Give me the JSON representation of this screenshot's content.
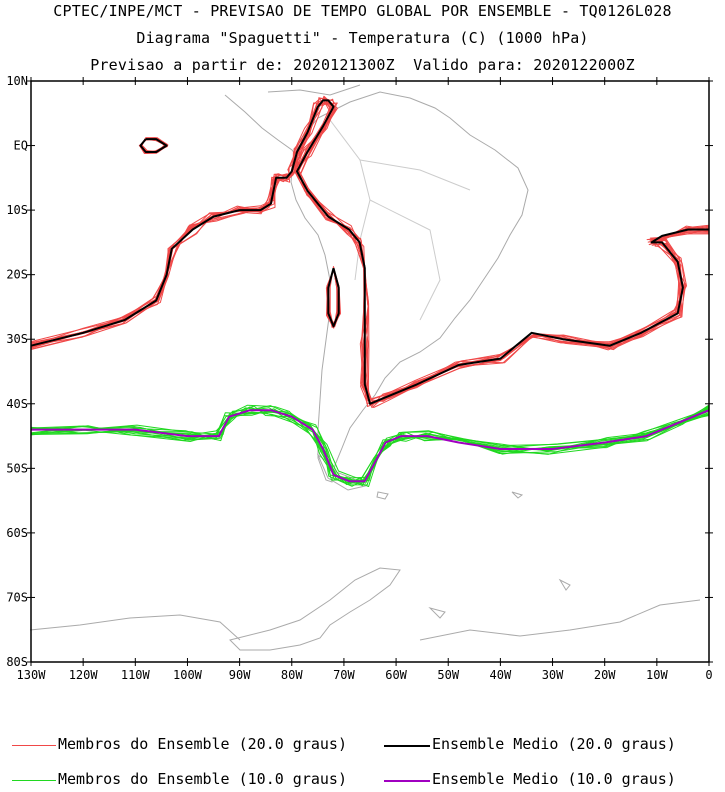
{
  "titles": {
    "line1": "CPTEC/INPE/MCT - PREVISAO DE TEMPO GLOBAL POR ENSEMBLE - TQ0126L028",
    "line2": "Diagrama \"Spaguetti\" - Temperatura (C) (1000 hPa)",
    "line3": "Previsao a partir de: 2020121300Z  Valido para: 2020122000Z"
  },
  "axes": {
    "lat_labels": [
      "10N",
      "EQ",
      "10S",
      "20S",
      "30S",
      "40S",
      "50S",
      "60S",
      "70S",
      "80S"
    ],
    "lon_labels": [
      "130W",
      "120W",
      "110W",
      "100W",
      "90W",
      "80W",
      "70W",
      "60W",
      "50W",
      "40W",
      "30W",
      "20W",
      "10W",
      "0"
    ],
    "lat_range": [
      10,
      -80
    ],
    "lon_range": [
      -130,
      0
    ]
  },
  "colors": {
    "member20": "#f04848",
    "mean20": "#000000",
    "member10": "#20d820",
    "mean10": "#a000c0",
    "coast": "#aaaaaa"
  },
  "legend": {
    "member20": "Membros do Ensemble (20.0 graus)",
    "mean20": "Ensemble Medio (20.0 graus)",
    "member10": "Membros do Ensemble (10.0 graus)",
    "mean10": "Ensemble Medio (10.0 graus)"
  },
  "contours": {
    "isotherm20_main": [
      [
        -130,
        -31
      ],
      [
        -120,
        -29
      ],
      [
        -112,
        -27
      ],
      [
        -106,
        -24
      ],
      [
        -104,
        -20
      ],
      [
        -103,
        -16
      ],
      [
        -99,
        -13
      ],
      [
        -95,
        -11
      ],
      [
        -90,
        -10
      ],
      [
        -86,
        -10
      ],
      [
        -84,
        -9
      ],
      [
        -83,
        -5
      ],
      [
        -81,
        -5
      ],
      [
        -80,
        -4
      ],
      [
        -79,
        -1
      ],
      [
        -77,
        2
      ],
      [
        -75,
        6
      ],
      [
        -74,
        7
      ],
      [
        -73,
        7
      ],
      [
        -72,
        6
      ],
      [
        -74,
        3
      ],
      [
        -77,
        -1
      ],
      [
        -79,
        -4
      ],
      [
        -77,
        -7
      ],
      [
        -73,
        -11
      ],
      [
        -69,
        -13
      ],
      [
        -67,
        -15
      ],
      [
        -66,
        -19
      ],
      [
        -66,
        -25
      ],
      [
        -66,
        -31
      ],
      [
        -66,
        -37
      ],
      [
        -65,
        -40
      ],
      [
        -62,
        -39
      ],
      [
        -56,
        -37
      ],
      [
        -48,
        -34
      ],
      [
        -40,
        -33
      ],
      [
        -34,
        -29
      ],
      [
        -28,
        -30
      ],
      [
        -19,
        -31
      ],
      [
        -13,
        -29
      ],
      [
        -6,
        -26
      ],
      [
        -5,
        -22
      ],
      [
        -6,
        -18
      ],
      [
        -9,
        -15
      ],
      [
        -11,
        -15
      ],
      [
        -9,
        -14
      ],
      [
        -4,
        -13
      ],
      [
        0,
        -13
      ]
    ],
    "isotherm20_island1": [
      [
        -108,
        1
      ],
      [
        -106,
        1
      ],
      [
        -104,
        0
      ],
      [
        -106,
        -1
      ],
      [
        -108,
        -1
      ],
      [
        -109,
        0
      ],
      [
        -108,
        1
      ]
    ],
    "isotherm20_island2": [
      [
        -72,
        -19
      ],
      [
        -71,
        -22
      ],
      [
        -71,
        -26
      ],
      [
        -72,
        -28
      ],
      [
        -73,
        -26
      ],
      [
        -73,
        -22
      ],
      [
        -72,
        -19
      ]
    ],
    "isotherm10": [
      [
        -130,
        -44
      ],
      [
        -120,
        -44
      ],
      [
        -110,
        -44
      ],
      [
        -100,
        -45
      ],
      [
        -94,
        -45
      ],
      [
        -92,
        -42
      ],
      [
        -88,
        -41
      ],
      [
        -84,
        -41
      ],
      [
        -80,
        -42
      ],
      [
        -76,
        -44
      ],
      [
        -74,
        -47
      ],
      [
        -72,
        -51
      ],
      [
        -69,
        -52
      ],
      [
        -66,
        -52
      ],
      [
        -64,
        -49
      ],
      [
        -62,
        -46
      ],
      [
        -59,
        -45
      ],
      [
        -54,
        -45
      ],
      [
        -48,
        -46
      ],
      [
        -40,
        -47
      ],
      [
        -30,
        -47
      ],
      [
        -20,
        -46
      ],
      [
        -12,
        -45
      ],
      [
        -6,
        -43
      ],
      [
        0,
        -41
      ]
    ]
  }
}
